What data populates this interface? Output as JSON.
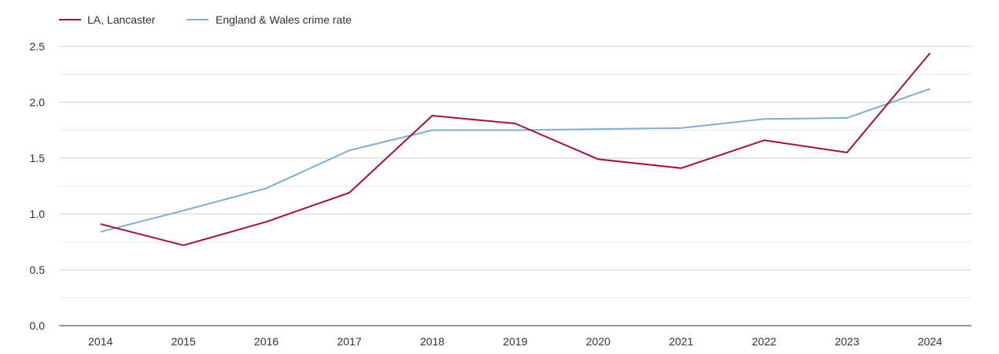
{
  "chart_data": {
    "type": "line",
    "title": "",
    "xlabel": "",
    "ylabel": "",
    "categories": [
      "2014",
      "2015",
      "2016",
      "2017",
      "2018",
      "2019",
      "2020",
      "2021",
      "2022",
      "2023",
      "2024"
    ],
    "ylim": [
      0,
      2.5
    ],
    "y_ticks": [
      "0.0",
      "0.5",
      "1.0",
      "1.5",
      "2.0",
      "2.5"
    ],
    "grid": true,
    "legend_position": "top-left",
    "series": [
      {
        "name": "LA, Lancaster",
        "color": "#a50f3c",
        "values": [
          0.91,
          0.72,
          0.93,
          1.19,
          1.88,
          1.81,
          1.49,
          1.41,
          1.66,
          1.55,
          2.44
        ]
      },
      {
        "name": "England & Wales crime rate",
        "color": "#7bafd4",
        "values": [
          0.84,
          1.03,
          1.23,
          1.57,
          1.75,
          1.75,
          1.76,
          1.77,
          1.85,
          1.86,
          2.12
        ]
      }
    ]
  }
}
